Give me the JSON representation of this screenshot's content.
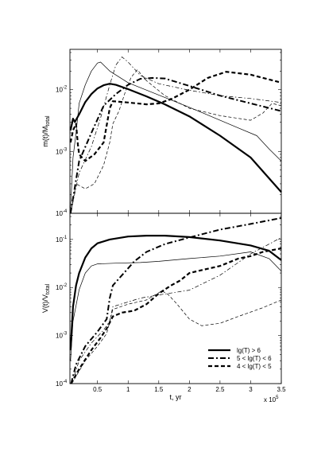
{
  "chart_data": [
    {
      "type": "line",
      "ylabel_main": "m(t)/M",
      "ylabel_sub": "total",
      "xlim": [
        0.05,
        3.5
      ],
      "ylim": [
        0.0001,
        0.045
      ],
      "y_scale": "log",
      "y_ticks": [
        {
          "base": "10",
          "exp": "-2",
          "value": 0.01
        },
        {
          "base": "10",
          "exp": "-3",
          "value": 0.001
        },
        {
          "base": "10",
          "exp": "-4",
          "value": 0.0001
        }
      ],
      "series": [
        {
          "id": "m-gt6-thick",
          "style": "thick-solid",
          "points": [
            [
              0.06,
              0.0022
            ],
            [
              0.1,
              0.0034
            ],
            [
              0.13,
              0.003
            ],
            [
              0.2,
              0.004
            ],
            [
              0.3,
              0.0063
            ],
            [
              0.4,
              0.0085
            ],
            [
              0.5,
              0.0105
            ],
            [
              0.6,
              0.0118
            ],
            [
              0.7,
              0.0125
            ],
            [
              0.8,
              0.012
            ],
            [
              1.0,
              0.0102
            ],
            [
              1.3,
              0.0078
            ],
            [
              1.6,
              0.0058
            ],
            [
              2.0,
              0.0037
            ],
            [
              2.5,
              0.0018
            ],
            [
              3.0,
              0.0008
            ],
            [
              3.5,
              0.00022
            ]
          ]
        },
        {
          "id": "m-gt6-thin",
          "style": "thin-solid",
          "points": [
            [
              0.06,
              0.00012
            ],
            [
              0.1,
              0.0008
            ],
            [
              0.15,
              0.002
            ],
            [
              0.2,
              0.006
            ],
            [
              0.3,
              0.012
            ],
            [
              0.4,
              0.02
            ],
            [
              0.5,
              0.027
            ],
            [
              0.55,
              0.028
            ],
            [
              0.6,
              0.025
            ],
            [
              0.7,
              0.02
            ],
            [
              1.0,
              0.013
            ],
            [
              1.5,
              0.0082
            ],
            [
              2.0,
              0.0052
            ],
            [
              2.5,
              0.0032
            ],
            [
              2.8,
              0.0024
            ],
            [
              3.1,
              0.0018
            ],
            [
              3.3,
              0.0011
            ],
            [
              3.5,
              0.0007
            ]
          ]
        },
        {
          "id": "m-5-6-thick",
          "style": "thick-dashdot",
          "points": [
            [
              0.06,
              0.0001
            ],
            [
              0.2,
              0.0007
            ],
            [
              0.4,
              0.002
            ],
            [
              0.6,
              0.0055
            ],
            [
              0.8,
              0.0085
            ],
            [
              1.0,
              0.012
            ],
            [
              1.2,
              0.015
            ],
            [
              1.4,
              0.0155
            ],
            [
              1.6,
              0.0152
            ],
            [
              2.0,
              0.0115
            ],
            [
              2.5,
              0.008
            ],
            [
              3.0,
              0.006
            ],
            [
              3.5,
              0.0045
            ]
          ]
        },
        {
          "id": "m-5-6-thin",
          "style": "thin-dashdot",
          "points": [
            [
              0.06,
              0.0001
            ],
            [
              0.2,
              0.00045
            ],
            [
              0.4,
              0.0012
            ],
            [
              0.55,
              0.0035
            ],
            [
              0.7,
              0.012
            ],
            [
              0.8,
              0.025
            ],
            [
              0.9,
              0.034
            ],
            [
              1.0,
              0.028
            ],
            [
              1.2,
              0.017
            ],
            [
              1.5,
              0.0125
            ],
            [
              2.0,
              0.0098
            ],
            [
              2.5,
              0.008
            ],
            [
              3.0,
              0.0072
            ],
            [
              3.5,
              0.0062
            ]
          ]
        },
        {
          "id": "m-4-5-thick",
          "style": "thick-dashed",
          "points": [
            [
              0.06,
              0.0014
            ],
            [
              0.1,
              0.0022
            ],
            [
              0.15,
              0.0028
            ],
            [
              0.18,
              0.0013
            ],
            [
              0.2,
              0.0009
            ],
            [
              0.3,
              0.0007
            ],
            [
              0.45,
              0.0009
            ],
            [
              0.6,
              0.0014
            ],
            [
              0.7,
              0.005
            ],
            [
              0.75,
              0.0065
            ],
            [
              1.0,
              0.0062
            ],
            [
              1.3,
              0.0058
            ],
            [
              1.5,
              0.006
            ],
            [
              1.7,
              0.007
            ],
            [
              2.0,
              0.01
            ],
            [
              2.3,
              0.0155
            ],
            [
              2.6,
              0.0195
            ],
            [
              3.0,
              0.0175
            ],
            [
              3.5,
              0.013
            ]
          ]
        },
        {
          "id": "m-4-5-thin",
          "style": "thin-dashed",
          "points": [
            [
              0.06,
              0.0001
            ],
            [
              0.15,
              0.0003
            ],
            [
              0.3,
              0.00025
            ],
            [
              0.45,
              0.0003
            ],
            [
              0.6,
              0.0006
            ],
            [
              0.7,
              0.0014
            ],
            [
              0.75,
              0.0028
            ],
            [
              0.85,
              0.0045
            ],
            [
              0.95,
              0.009
            ],
            [
              1.05,
              0.016
            ],
            [
              1.15,
              0.021
            ],
            [
              1.3,
              0.014
            ],
            [
              1.6,
              0.008
            ],
            [
              2.0,
              0.005
            ],
            [
              2.5,
              0.0038
            ],
            [
              3.0,
              0.0032
            ],
            [
              3.2,
              0.0042
            ],
            [
              3.35,
              0.006
            ],
            [
              3.5,
              0.0055
            ]
          ]
        }
      ]
    },
    {
      "type": "line",
      "xlabel": "t, yr",
      "ylabel_main": "V(t)/V",
      "ylabel_sub": "total",
      "xlim": [
        0.05,
        3.5
      ],
      "ylim": [
        0.0001,
        0.35
      ],
      "y_scale": "log",
      "x_ticks": [
        "0.5",
        "1",
        "1.5",
        "2",
        "2.5",
        "3",
        "3.5"
      ],
      "x_tick_values": [
        0.5,
        1,
        1.5,
        2,
        2.5,
        3,
        3.5
      ],
      "x_multiplier": {
        "base": "x 10",
        "exp": "5"
      },
      "y_ticks": [
        {
          "base": "10",
          "exp": "-1",
          "value": 0.1
        },
        {
          "base": "10",
          "exp": "-2",
          "value": 0.01
        },
        {
          "base": "10",
          "exp": "-3",
          "value": 0.001
        },
        {
          "base": "10",
          "exp": "-4",
          "value": 0.0001
        }
      ],
      "legend": [
        {
          "label": "lg(T) > 6",
          "style": "thick-solid"
        },
        {
          "label": "5 < lg(T) < 6",
          "style": "thick-dashdot"
        },
        {
          "label": "4 < lg(T) < 5",
          "style": "thick-dashed"
        }
      ],
      "legend_position": "bottom-right",
      "series": [
        {
          "id": "v-gt6-thick",
          "style": "thick-solid",
          "points": [
            [
              0.06,
              0.0005
            ],
            [
              0.1,
              0.004
            ],
            [
              0.15,
              0.011
            ],
            [
              0.2,
              0.02
            ],
            [
              0.3,
              0.042
            ],
            [
              0.4,
              0.065
            ],
            [
              0.5,
              0.083
            ],
            [
              0.7,
              0.1
            ],
            [
              1.0,
              0.115
            ],
            [
              1.3,
              0.12
            ],
            [
              1.6,
              0.12
            ],
            [
              2.0,
              0.112
            ],
            [
              2.5,
              0.095
            ],
            [
              3.0,
              0.075
            ],
            [
              3.3,
              0.058
            ],
            [
              3.5,
              0.037
            ]
          ]
        },
        {
          "id": "v-gt6-thin",
          "style": "thin-solid",
          "points": [
            [
              0.06,
              0.0003
            ],
            [
              0.1,
              0.002
            ],
            [
              0.2,
              0.009
            ],
            [
              0.3,
              0.02
            ],
            [
              0.4,
              0.028
            ],
            [
              0.5,
              0.031
            ],
            [
              0.8,
              0.032
            ],
            [
              1.2,
              0.033
            ],
            [
              1.5,
              0.035
            ],
            [
              2.0,
              0.04
            ],
            [
              2.5,
              0.045
            ],
            [
              3.0,
              0.055
            ],
            [
              3.3,
              0.04
            ],
            [
              3.5,
              0.022
            ]
          ]
        },
        {
          "id": "v-5-6-thick",
          "style": "thick-dashdot",
          "points": [
            [
              0.07,
              0.0001
            ],
            [
              0.15,
              0.00025
            ],
            [
              0.3,
              0.0006
            ],
            [
              0.5,
              0.0012
            ],
            [
              0.65,
              0.0022
            ],
            [
              0.7,
              0.006
            ],
            [
              0.75,
              0.011
            ],
            [
              0.9,
              0.018
            ],
            [
              1.1,
              0.035
            ],
            [
              1.3,
              0.055
            ],
            [
              1.6,
              0.08
            ],
            [
              2.0,
              0.11
            ],
            [
              2.5,
              0.16
            ],
            [
              3.0,
              0.21
            ],
            [
              3.5,
              0.28
            ]
          ]
        },
        {
          "id": "v-5-6-thin",
          "style": "thin-dashdot",
          "points": [
            [
              0.08,
              0.0001
            ],
            [
              0.2,
              0.0003
            ],
            [
              0.4,
              0.0007
            ],
            [
              0.6,
              0.0013
            ],
            [
              0.7,
              0.002
            ],
            [
              0.75,
              0.004
            ],
            [
              1.0,
              0.005
            ],
            [
              1.2,
              0.006
            ],
            [
              1.5,
              0.007
            ],
            [
              2.0,
              0.0088
            ],
            [
              2.5,
              0.018
            ],
            [
              3.0,
              0.05
            ],
            [
              3.3,
              0.08
            ],
            [
              3.5,
              0.11
            ]
          ]
        },
        {
          "id": "v-4-5-thick",
          "style": "thick-dashed",
          "points": [
            [
              0.07,
              0.0001
            ],
            [
              0.2,
              0.0002
            ],
            [
              0.4,
              0.0005
            ],
            [
              0.55,
              0.0009
            ],
            [
              0.65,
              0.0014
            ],
            [
              0.75,
              0.0025
            ],
            [
              0.9,
              0.003
            ],
            [
              1.1,
              0.0033
            ],
            [
              1.3,
              0.0045
            ],
            [
              1.5,
              0.0075
            ],
            [
              1.7,
              0.011
            ],
            [
              1.85,
              0.014
            ],
            [
              2.0,
              0.02
            ],
            [
              2.2,
              0.023
            ],
            [
              2.5,
              0.028
            ],
            [
              2.8,
              0.04
            ],
            [
              3.0,
              0.045
            ],
            [
              3.2,
              0.055
            ],
            [
              3.5,
              0.065
            ]
          ]
        },
        {
          "id": "v-4-5-thin",
          "style": "thin-dashed",
          "points": [
            [
              0.08,
              0.0001
            ],
            [
              0.3,
              0.0003
            ],
            [
              0.5,
              0.0006
            ],
            [
              0.65,
              0.0011
            ],
            [
              0.75,
              0.0035
            ],
            [
              1.0,
              0.0045
            ],
            [
              1.3,
              0.0055
            ],
            [
              1.55,
              0.0085
            ],
            [
              1.65,
              0.0072
            ],
            [
              1.8,
              0.0045
            ],
            [
              2.0,
              0.0022
            ],
            [
              2.2,
              0.0016
            ],
            [
              2.5,
              0.0018
            ],
            [
              2.8,
              0.0025
            ],
            [
              3.2,
              0.0038
            ],
            [
              3.5,
              0.0055
            ]
          ]
        }
      ]
    }
  ]
}
